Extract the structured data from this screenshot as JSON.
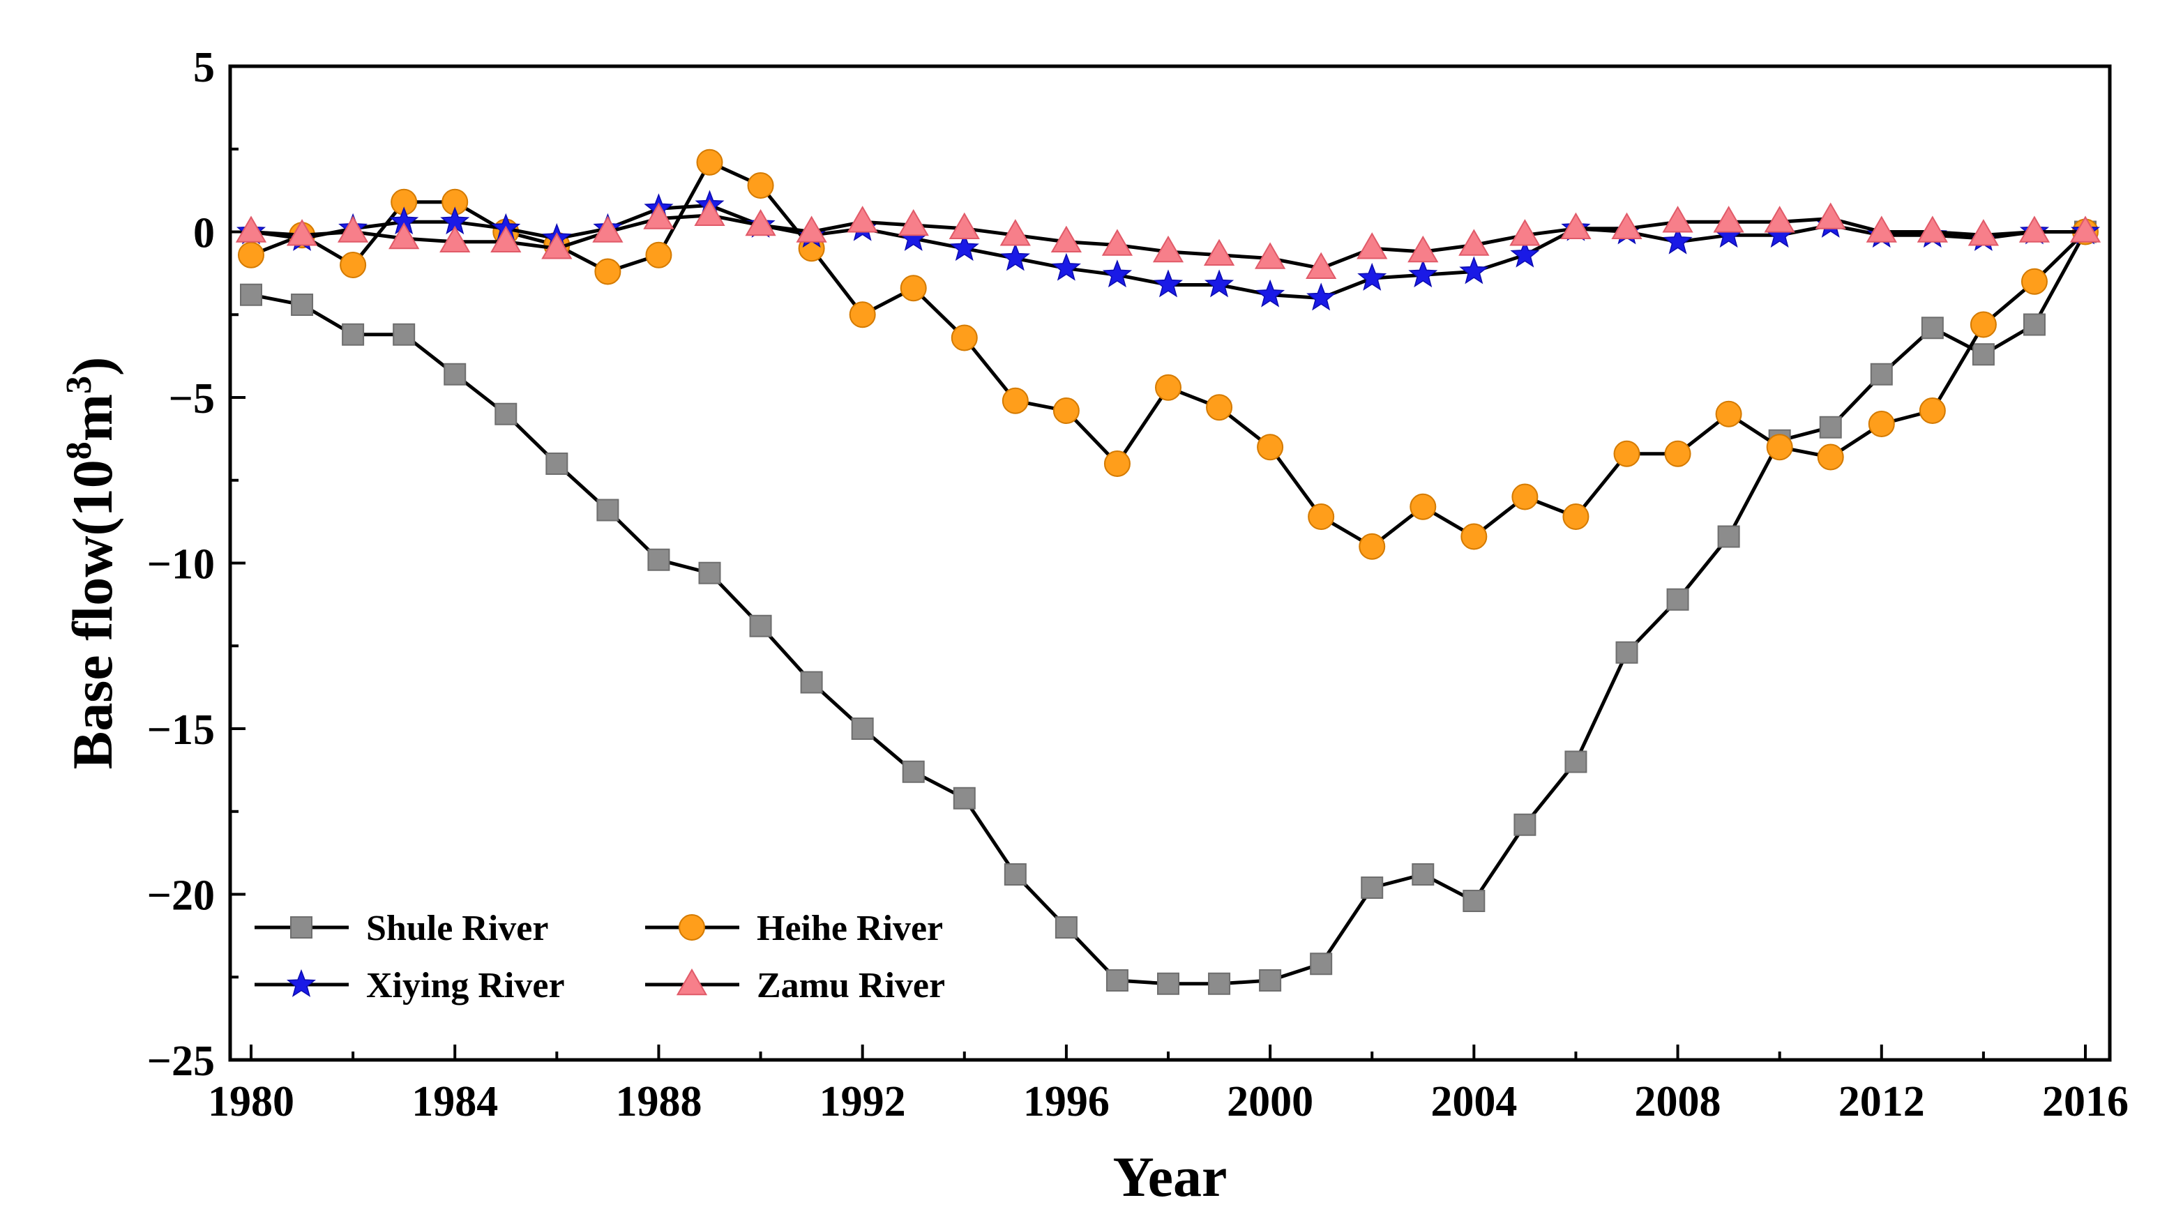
{
  "chart_data": {
    "type": "line",
    "xlabel": "Year",
    "ylabel_main": "Base flow(10",
    "ylabel_sup1": "8",
    "ylabel_mid": "m",
    "ylabel_sup2": "3",
    "ylabel_end": ")",
    "xlim": [
      1980,
      2016
    ],
    "ylim": [
      -25,
      5
    ],
    "x_ticks": [
      1980,
      1984,
      1988,
      1992,
      1996,
      2000,
      2004,
      2008,
      2012,
      2016
    ],
    "x_tick_labels": [
      "1980",
      "1984",
      "1988",
      "1992",
      "1996",
      "2000",
      "2004",
      "2008",
      "2012",
      "2016"
    ],
    "y_ticks": [
      5,
      0,
      -5,
      -10,
      -15,
      -20,
      -25
    ],
    "y_tick_labels": [
      "5",
      "0",
      "−5",
      "−10",
      "−15",
      "−20",
      "−25"
    ],
    "legend_position": "bottom-left",
    "x": [
      1980,
      1981,
      1982,
      1983,
      1984,
      1985,
      1986,
      1987,
      1988,
      1989,
      1990,
      1991,
      1992,
      1993,
      1994,
      1995,
      1996,
      1997,
      1998,
      1999,
      2000,
      2001,
      2002,
      2003,
      2004,
      2005,
      2006,
      2007,
      2008,
      2009,
      2010,
      2011,
      2012,
      2013,
      2014,
      2015,
      2016
    ],
    "series": [
      {
        "name": "Shule River",
        "marker": "square",
        "color": "#8c8c8c",
        "values": [
          -1.9,
          -2.2,
          -3.1,
          -3.1,
          -4.3,
          -5.5,
          -7.0,
          -8.4,
          -9.9,
          -10.3,
          -11.9,
          -13.6,
          -15.0,
          -16.3,
          -17.1,
          -19.4,
          -21.0,
          -22.6,
          -22.7,
          -22.7,
          -22.6,
          -22.1,
          -19.8,
          -19.4,
          -20.2,
          -17.9,
          -16.0,
          -12.7,
          -11.1,
          -9.2,
          -6.3,
          -5.9,
          -4.3,
          -2.9,
          -3.7,
          -2.8,
          0.0
        ]
      },
      {
        "name": "Heihe River",
        "marker": "circle",
        "color": "#ff9e1b",
        "values": [
          -0.7,
          -0.1,
          -1.0,
          0.9,
          0.9,
          0.0,
          -0.4,
          -1.2,
          -0.7,
          2.1,
          1.4,
          -0.5,
          -2.5,
          -1.7,
          -3.2,
          -5.1,
          -5.4,
          -7.0,
          -4.7,
          -5.3,
          -6.5,
          -8.6,
          -9.5,
          -8.3,
          -9.2,
          -8.0,
          -8.6,
          -6.7,
          -6.7,
          -5.5,
          -6.5,
          -6.8,
          -5.8,
          -5.4,
          -2.8,
          -1.5,
          0.0
        ]
      },
      {
        "name": "Xiying River",
        "marker": "star",
        "color": "#1a1ae6",
        "values": [
          0.0,
          -0.2,
          0.1,
          0.3,
          0.3,
          0.1,
          -0.2,
          0.1,
          0.7,
          0.8,
          0.2,
          -0.1,
          0.1,
          -0.2,
          -0.5,
          -0.8,
          -1.1,
          -1.3,
          -1.6,
          -1.6,
          -1.9,
          -2.0,
          -1.4,
          -1.3,
          -1.2,
          -0.7,
          0.1,
          0.0,
          -0.3,
          -0.1,
          -0.1,
          0.2,
          -0.1,
          -0.1,
          -0.2,
          0.0,
          0.0
        ]
      },
      {
        "name": "Zamu River",
        "marker": "triangle",
        "color": "#f77f8a",
        "values": [
          0.0,
          -0.1,
          0.0,
          -0.2,
          -0.3,
          -0.3,
          -0.5,
          0.0,
          0.4,
          0.5,
          0.2,
          0.0,
          0.3,
          0.2,
          0.1,
          -0.1,
          -0.3,
          -0.4,
          -0.6,
          -0.7,
          -0.8,
          -1.1,
          -0.5,
          -0.6,
          -0.4,
          -0.1,
          0.1,
          0.1,
          0.3,
          0.3,
          0.3,
          0.4,
          0.0,
          0.0,
          -0.1,
          0.0,
          0.0
        ]
      }
    ]
  }
}
